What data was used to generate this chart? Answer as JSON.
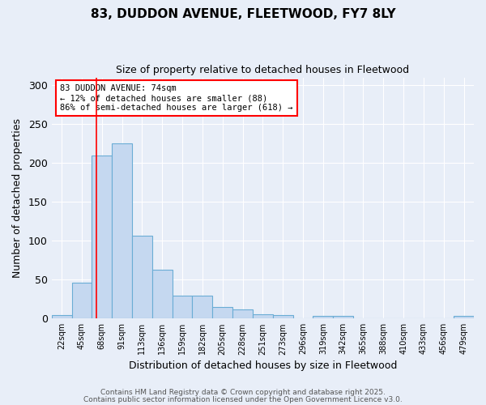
{
  "title1": "83, DUDDON AVENUE, FLEETWOOD, FY7 8LY",
  "title2": "Size of property relative to detached houses in Fleetwood",
  "xlabel": "Distribution of detached houses by size in Fleetwood",
  "ylabel": "Number of detached properties",
  "categories": [
    "22sqm",
    "45sqm",
    "68sqm",
    "91sqm",
    "113sqm",
    "136sqm",
    "159sqm",
    "182sqm",
    "205sqm",
    "228sqm",
    "251sqm",
    "273sqm",
    "296sqm",
    "319sqm",
    "342sqm",
    "365sqm",
    "388sqm",
    "410sqm",
    "433sqm",
    "456sqm",
    "479sqm"
  ],
  "values": [
    4,
    46,
    210,
    225,
    107,
    63,
    30,
    30,
    15,
    12,
    6,
    4,
    0,
    3,
    3,
    0,
    0,
    0,
    0,
    0,
    3
  ],
  "bar_color": "#c5d8f0",
  "bar_edge_color": "#6aadd5",
  "red_line_x": 1.73,
  "annotation_text": "83 DUDDON AVENUE: 74sqm\n← 12% of detached houses are smaller (88)\n86% of semi-detached houses are larger (618) →",
  "annotation_box_color": "white",
  "annotation_box_edge": "red",
  "footer1": "Contains HM Land Registry data © Crown copyright and database right 2025.",
  "footer2": "Contains public sector information licensed under the Open Government Licence v3.0.",
  "ylim": [
    0,
    310
  ],
  "yticks": [
    0,
    50,
    100,
    150,
    200,
    250,
    300
  ],
  "bg_color": "#e8eef8",
  "plot_bg_color": "#e8eef8",
  "grid_color": "#ffffff"
}
